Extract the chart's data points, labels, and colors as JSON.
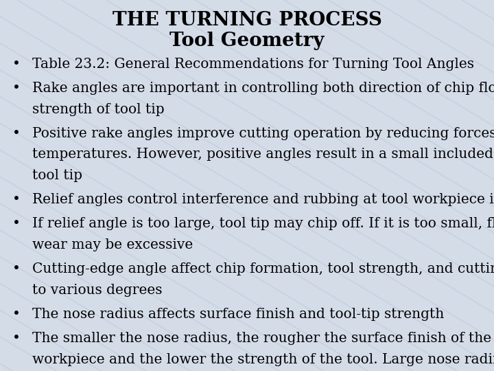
{
  "title_line1": "THE TURNING PROCESS",
  "title_line2": "Tool Geometry",
  "background_color": "#d4dce8",
  "text_color": "#000000",
  "title_color": "#000000",
  "bullet_points": [
    "Table 23.2: General Recommendations for Turning Tool Angles",
    "Rake angles are important in controlling both direction of chip flow and\nstrength of tool tip",
    "Positive rake angles improve cutting operation by reducing forces and\ntemperatures. However, positive angles result in a small included angle of\ntool tip",
    "Relief angles control interference and rubbing at tool workpiece interface",
    "If relief angle is too large, tool tip may chip off. If it is too small, flank\nwear may be excessive",
    "Cutting-edge angle affect chip formation, tool strength, and cutting forces\nto various degrees",
    "The nose radius affects surface finish and tool-tip strength",
    "The smaller the nose radius, the rougher the surface finish of the\nworkpiece and the lower the strength of the tool. Large nose radii can lead\nto tool chatter."
  ],
  "title1_fontsize": 20,
  "title2_fontsize": 20,
  "bullet_fontsize": 14.5,
  "bullet_symbol": "•",
  "watermark_color": "#c0cad8",
  "watermark_alpha": 0.6
}
